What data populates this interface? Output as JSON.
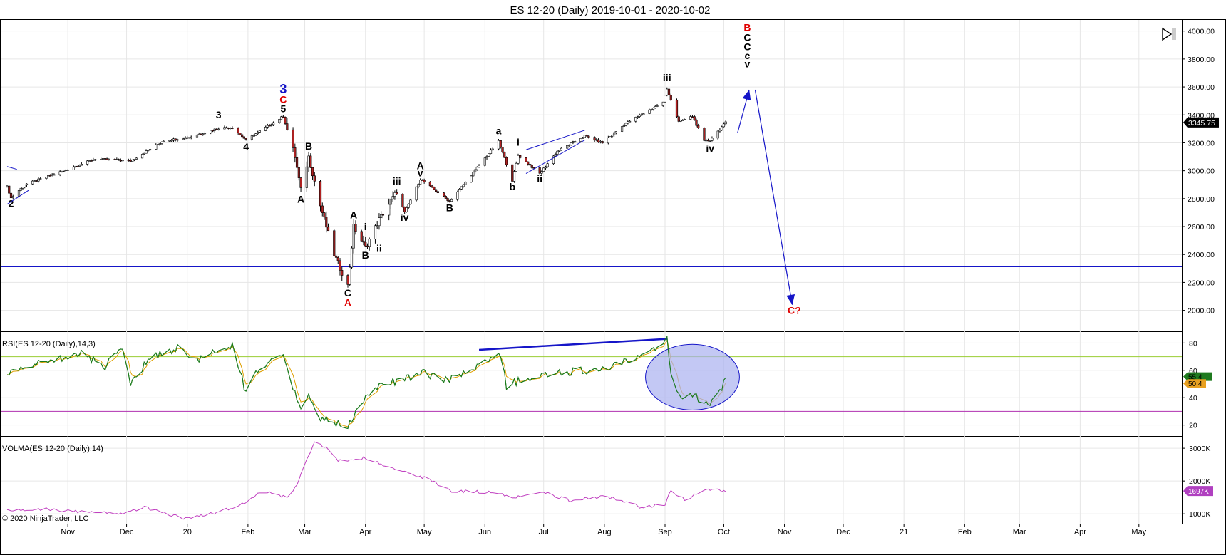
{
  "title": "ES 12-20 (Daily)  2019-10-01 - 2020-10-02",
  "copyright": "© 2020 NinjaTrader, LLC",
  "toggle_icon": "panel-toggle-icon",
  "colors": {
    "up_candle": "#ffffff",
    "down_candle": "#b22222",
    "wave_blue": "#1515c8",
    "wave_red": "#e00000",
    "rsi_line": "#1a7a1a",
    "rsi_signal": "#e0a000",
    "rsi_upper": "#9acd32",
    "rsi_lower": "#b030b0",
    "volma_line": "#c040c0",
    "price_badge_bg": "#000000",
    "rsi_badge_green": "#1f7a1f",
    "rsi_badge_orange": "#e8a020",
    "volma_badge": "#b040c0",
    "ellipse_fill": "#aab0f0"
  },
  "x_axis": {
    "labels": [
      "Nov",
      "Dec",
      "20",
      "Feb",
      "Mar",
      "Apr",
      "May",
      "Jun",
      "Jul",
      "Aug",
      "Sep",
      "Oct",
      "Nov",
      "Dec",
      "21",
      "Feb",
      "Mar",
      "Apr",
      "May"
    ],
    "dates": [
      "2019-11-01",
      "2019-12-01",
      "2020-01-01",
      "2020-02-01",
      "2020-03-01",
      "2020-04-01",
      "2020-05-01",
      "2020-06-01",
      "2020-07-01",
      "2020-08-01",
      "2020-09-01",
      "2020-10-01",
      "2020-11-01",
      "2020-12-01",
      "2021-01-01",
      "2021-02-01",
      "2021-03-01",
      "2021-04-01",
      "2021-05-01"
    ]
  },
  "chart_data": [
    {
      "type": "candlestick",
      "name": "ES 12-20 (Daily)",
      "y_ticks": [
        "4000.00",
        "3800.00",
        "3600.00",
        "3400.00",
        "3200.00",
        "3000.00",
        "2800.00",
        "2600.00",
        "2400.00",
        "2200.00",
        "2000.00"
      ],
      "ylim": [
        1850,
        4080
      ],
      "last_price": "3345.75",
      "horizontal_line": 2312,
      "anchors": [
        [
          "2019-10-01",
          2885
        ],
        [
          "2019-10-03",
          2805
        ],
        [
          "2019-10-10",
          2900
        ],
        [
          "2019-10-25",
          2975
        ],
        [
          "2019-11-15",
          3085
        ],
        [
          "2019-12-03",
          3070
        ],
        [
          "2019-12-20",
          3215
        ],
        [
          "2020-01-02",
          3240
        ],
        [
          "2020-01-17",
          3305
        ],
        [
          "2020-01-24",
          3310
        ],
        [
          "2020-01-31",
          3220
        ],
        [
          "2020-02-19",
          3390
        ],
        [
          "2020-02-25",
          3100
        ],
        [
          "2020-02-28",
          2860
        ],
        [
          "2020-03-03",
          3100
        ],
        [
          "2020-03-09",
          2750
        ],
        [
          "2020-03-16",
          2400
        ],
        [
          "2020-03-23",
          2175
        ],
        [
          "2020-03-26",
          2600
        ],
        [
          "2020-04-01",
          2450
        ],
        [
          "2020-04-08",
          2650
        ],
        [
          "2020-04-17",
          2850
        ],
        [
          "2020-04-21",
          2700
        ],
        [
          "2020-04-29",
          2940
        ],
        [
          "2020-05-14",
          2780
        ],
        [
          "2020-06-08",
          3210
        ],
        [
          "2020-06-15",
          2930
        ],
        [
          "2020-06-18",
          3110
        ],
        [
          "2020-06-29",
          2980
        ],
        [
          "2020-07-08",
          3140
        ],
        [
          "2020-07-22",
          3250
        ],
        [
          "2020-07-31",
          3200
        ],
        [
          "2020-08-12",
          3340
        ],
        [
          "2020-08-31",
          3490
        ],
        [
          "2020-09-02",
          3585
        ],
        [
          "2020-09-08",
          3350
        ],
        [
          "2020-09-15",
          3390
        ],
        [
          "2020-09-21",
          3210
        ],
        [
          "2020-09-24",
          3220
        ],
        [
          "2020-10-02",
          3345
        ]
      ],
      "wave_labels": [
        {
          "text": "2",
          "date": "2019-10-03",
          "price": 2740,
          "color": "black"
        },
        {
          "text": "3",
          "date": "2020-01-17",
          "price": 3375,
          "color": "black"
        },
        {
          "text": "4",
          "date": "2020-01-31",
          "price": 3145,
          "color": "black"
        },
        {
          "text": "5",
          "date": "2020-02-19",
          "price": 3420,
          "color": "black"
        },
        {
          "text": "C",
          "date": "2020-02-19",
          "price": 3485,
          "color": "red"
        },
        {
          "text": "3",
          "date": "2020-02-19",
          "price": 3555,
          "color": "blue"
        },
        {
          "text": "B",
          "date": "2020-03-03",
          "price": 3150,
          "color": "black"
        },
        {
          "text": "A",
          "date": "2020-02-28",
          "price": 2770,
          "color": "black"
        },
        {
          "text": "C",
          "date": "2020-03-23",
          "price": 2100,
          "color": "black"
        },
        {
          "text": "A",
          "date": "2020-03-23",
          "price": 2030,
          "color": "red"
        },
        {
          "text": "A",
          "date": "2020-03-26",
          "price": 2660,
          "color": "black"
        },
        {
          "text": "i",
          "date": "2020-04-01",
          "price": 2575,
          "color": "black"
        },
        {
          "text": "B",
          "date": "2020-04-01",
          "price": 2370,
          "color": "black"
        },
        {
          "text": "ii",
          "date": "2020-04-08",
          "price": 2420,
          "color": "black"
        },
        {
          "text": "iii",
          "date": "2020-04-17",
          "price": 2900,
          "color": "black"
        },
        {
          "text": "iv",
          "date": "2020-04-21",
          "price": 2640,
          "color": "black"
        },
        {
          "text": "A",
          "date": "2020-04-29",
          "price": 3010,
          "color": "black"
        },
        {
          "text": "v",
          "date": "2020-04-29",
          "price": 2960,
          "color": "black"
        },
        {
          "text": "B",
          "date": "2020-05-14",
          "price": 2710,
          "color": "black"
        },
        {
          "text": "a",
          "date": "2020-06-08",
          "price": 3260,
          "color": "black"
        },
        {
          "text": "b",
          "date": "2020-06-15",
          "price": 2860,
          "color": "black"
        },
        {
          "text": "i",
          "date": "2020-06-18",
          "price": 3180,
          "color": "black"
        },
        {
          "text": "ii",
          "date": "2020-06-29",
          "price": 2920,
          "color": "black"
        },
        {
          "text": "iii",
          "date": "2020-09-02",
          "price": 3640,
          "color": "black"
        },
        {
          "text": "iv",
          "date": "2020-09-24",
          "price": 3135,
          "color": "black"
        },
        {
          "text": "B",
          "date": "2020-10-13",
          "price": 4000,
          "color": "red"
        },
        {
          "text": "C",
          "date": "2020-10-13",
          "price": 3930,
          "color": "black"
        },
        {
          "text": "C",
          "date": "2020-10-13",
          "price": 3862,
          "color": "black"
        },
        {
          "text": "c",
          "date": "2020-10-13",
          "price": 3800,
          "color": "black"
        },
        {
          "text": "v",
          "date": "2020-10-13",
          "price": 3740,
          "color": "black"
        },
        {
          "text": "C?",
          "date": "2020-11-06",
          "price": 1975,
          "color": "red"
        }
      ]
    },
    {
      "type": "line",
      "name": "RSI(ES 12-20 (Daily),14,3)",
      "y_ticks": [
        "80",
        "60",
        "40",
        "20"
      ],
      "ylim": [
        12,
        88
      ],
      "levels": [
        70,
        30
      ],
      "last_values": [
        "50.4",
        "55.4"
      ],
      "anchors": [
        [
          "2019-10-01",
          57
        ],
        [
          "2019-10-10",
          62
        ],
        [
          "2019-10-25",
          68
        ],
        [
          "2019-11-08",
          72
        ],
        [
          "2019-11-20",
          63
        ],
        [
          "2019-11-29",
          75
        ],
        [
          "2019-12-03",
          49
        ],
        [
          "2019-12-13",
          70
        ],
        [
          "2019-12-27",
          76
        ],
        [
          "2020-01-06",
          67
        ],
        [
          "2020-01-17",
          75
        ],
        [
          "2020-01-24",
          77
        ],
        [
          "2020-01-31",
          44
        ],
        [
          "2020-02-05",
          60
        ],
        [
          "2020-02-19",
          70
        ],
        [
          "2020-02-28",
          30
        ],
        [
          "2020-03-03",
          40
        ],
        [
          "2020-03-09",
          25
        ],
        [
          "2020-03-16",
          22
        ],
        [
          "2020-03-23",
          18
        ],
        [
          "2020-03-30",
          37
        ],
        [
          "2020-04-08",
          48
        ],
        [
          "2020-04-21",
          54
        ],
        [
          "2020-05-01",
          58
        ],
        [
          "2020-05-14",
          53
        ],
        [
          "2020-05-29",
          63
        ],
        [
          "2020-06-08",
          75
        ],
        [
          "2020-06-12",
          49
        ],
        [
          "2020-06-25",
          55
        ],
        [
          "2020-07-14",
          59
        ],
        [
          "2020-07-31",
          60
        ],
        [
          "2020-08-14",
          67
        ],
        [
          "2020-08-28",
          75
        ],
        [
          "2020-09-02",
          83
        ],
        [
          "2020-09-04",
          55
        ],
        [
          "2020-09-09",
          38
        ],
        [
          "2020-09-14",
          44
        ],
        [
          "2020-09-23",
          34
        ],
        [
          "2020-10-02",
          52
        ]
      ],
      "trendline": [
        [
          "2020-05-29",
          75
        ],
        [
          "2020-09-02",
          83
        ]
      ]
    },
    {
      "type": "line",
      "name": "VOLMA(ES 12-20 (Daily),14)",
      "y_ticks": [
        "3000K",
        "2000K",
        "1000K"
      ],
      "ylim": [
        700,
        3350
      ],
      "last_value": "1697K",
      "anchors": [
        [
          "2019-10-01",
          1100
        ],
        [
          "2019-10-20",
          1150
        ],
        [
          "2019-11-10",
          1050
        ],
        [
          "2019-11-30",
          1000
        ],
        [
          "2019-12-10",
          1200
        ],
        [
          "2019-12-31",
          850
        ],
        [
          "2020-01-10",
          950
        ],
        [
          "2020-01-25",
          1200
        ],
        [
          "2020-02-01",
          1400
        ],
        [
          "2020-02-08",
          1700
        ],
        [
          "2020-02-21",
          1500
        ],
        [
          "2020-02-26",
          1900
        ],
        [
          "2020-03-02",
          2700
        ],
        [
          "2020-03-06",
          3150
        ],
        [
          "2020-03-13",
          3000
        ],
        [
          "2020-03-18",
          2600
        ],
        [
          "2020-03-31",
          2700
        ],
        [
          "2020-04-10",
          2500
        ],
        [
          "2020-05-01",
          2100
        ],
        [
          "2020-05-15",
          1700
        ],
        [
          "2020-06-08",
          1650
        ],
        [
          "2020-06-15",
          1500
        ],
        [
          "2020-07-01",
          1650
        ],
        [
          "2020-07-15",
          1400
        ],
        [
          "2020-08-01",
          1550
        ],
        [
          "2020-08-20",
          1200
        ],
        [
          "2020-09-01",
          1300
        ],
        [
          "2020-09-04",
          1700
        ],
        [
          "2020-09-12",
          1400
        ],
        [
          "2020-09-20",
          1750
        ],
        [
          "2020-10-02",
          1700
        ]
      ]
    }
  ]
}
